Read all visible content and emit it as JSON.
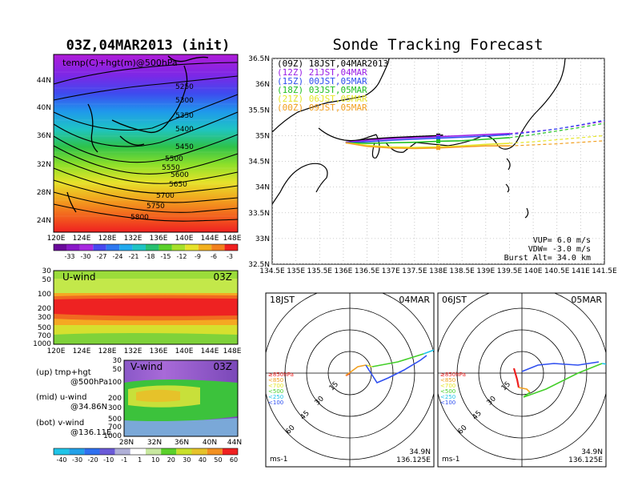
{
  "left_title": "03Z,04MAR2013 (init)",
  "right_title": "Sonde Tracking Forecast",
  "colors": {
    "purple": "#9a1ce6",
    "blue": "#2f4ff0",
    "cyan": "#1fc4e8",
    "teal": "#22c08a",
    "green": "#44cf2a",
    "lime": "#a6e830",
    "yellow": "#e4e62a",
    "orange": "#f2a020",
    "red": "#ef2020"
  },
  "top_map": {
    "inset_label": "temp(C)+hgt(m)@500hPa",
    "lat_ticks": [
      "44N",
      "40N",
      "36N",
      "32N",
      "28N",
      "24N"
    ],
    "lon_ticks": [
      "120E",
      "124E",
      "128E",
      "132E",
      "136E",
      "140E",
      "144E",
      "148E"
    ],
    "contour_labels": [
      "5250",
      "5300",
      "5350",
      "5400",
      "5450",
      "5500",
      "5550",
      "5600",
      "5650",
      "5700",
      "5750",
      "5800"
    ],
    "colorbar_labels": [
      "-33",
      "-30",
      "-27",
      "-24",
      "-21",
      "-18",
      "-15",
      "-12",
      "-9",
      "-6",
      "-3"
    ]
  },
  "u_panel": {
    "label": "U-wind",
    "time": "03Z",
    "p_ticks": [
      "30",
      "50",
      "100",
      "200",
      "300",
      "500",
      "700",
      "1000"
    ],
    "lon_ticks": [
      "120E",
      "124E",
      "128E",
      "132E",
      "136E",
      "140E",
      "144E",
      "148E"
    ]
  },
  "v_panel": {
    "label": "V-wind",
    "time": "03Z",
    "p_ticks": [
      "30",
      "50",
      "100",
      "200",
      "300",
      "500",
      "700",
      "1000"
    ],
    "lat_ticks": [
      "28N",
      "32N",
      "36N",
      "40N",
      "44N"
    ]
  },
  "legend_notes": [
    {
      "line1": "(up) tmp+hgt",
      "line2": "@500hPa"
    },
    {
      "line1": "(mid) u-wind",
      "line2": "@34.86N"
    },
    {
      "line1": "(bot) v-wind",
      "line2": "@136.11E"
    }
  ],
  "wind_colorbar_labels": [
    "-40",
    "-30",
    "-20",
    "-10",
    "-1",
    "1",
    "10",
    "20",
    "30",
    "40",
    "50",
    "60"
  ],
  "chart_data": {
    "type": "line",
    "title": "Sonde Tracking Forecast",
    "xlim": [
      134.5,
      141.5
    ],
    "ylim": [
      32.5,
      36.5
    ],
    "x_ticks": [
      "134.5E",
      "135E",
      "135.5E",
      "136E",
      "136.5E",
      "137E",
      "137.5E",
      "138E",
      "138.5E",
      "139E",
      "139.5E",
      "140E",
      "140.5E",
      "141E",
      "141.5E"
    ],
    "y_ticks": [
      "36.5N",
      "36N",
      "35.5N",
      "35N",
      "34.5N",
      "34N",
      "33.5N",
      "33N",
      "32.5N"
    ],
    "series": [
      {
        "name": "(09Z)  18JST,04MAR2013",
        "color": "#000000",
        "x": [
          136.05,
          136.5,
          137.0,
          137.5,
          138.0,
          138.1
        ],
        "y": [
          34.87,
          34.93,
          34.96,
          34.98,
          35.0,
          35.01
        ]
      },
      {
        "name": "(12Z)  21JST,04MAR",
        "color": "#9a1ce6",
        "x": [
          136.05,
          136.5,
          137.0,
          137.5,
          138.0,
          138.5,
          139.0,
          139.5,
          140.0,
          140.5,
          141.0,
          141.5
        ],
        "y": [
          34.87,
          34.91,
          34.94,
          34.96,
          34.98,
          35.0,
          35.02,
          35.04,
          35.08,
          35.13,
          35.2,
          35.28
        ]
      },
      {
        "name": "(15Z)  00JST,05MAR",
        "color": "#2f4ff0",
        "x": [
          136.05,
          136.5,
          137.0,
          137.5,
          138.0,
          138.5,
          139.0,
          139.5,
          140.0,
          140.5,
          141.0,
          141.5
        ],
        "y": [
          34.86,
          34.88,
          34.91,
          34.93,
          34.95,
          34.97,
          34.99,
          35.02,
          35.07,
          35.13,
          35.21,
          35.3
        ]
      },
      {
        "name": "(18Z)  03JST,05MAR",
        "color": "#22c022",
        "x": [
          136.05,
          136.5,
          137.0,
          137.5,
          138.0,
          138.5,
          139.0,
          139.5,
          140.0,
          140.5,
          141.0,
          141.5
        ],
        "y": [
          34.86,
          34.85,
          34.86,
          34.87,
          34.89,
          34.9,
          34.93,
          34.96,
          35.02,
          35.09,
          35.16,
          35.24
        ]
      },
      {
        "name": "(21Z)  06JST,05MAR",
        "color": "#e6e62a",
        "x": [
          136.05,
          136.5,
          137.0,
          137.5,
          138.0,
          138.5,
          139.0,
          139.5,
          140.0,
          140.5,
          141.0,
          141.5
        ],
        "y": [
          34.86,
          34.81,
          34.78,
          34.77,
          34.78,
          34.8,
          34.83,
          34.85,
          34.88,
          34.92,
          34.96,
          35.0
        ]
      },
      {
        "name": "(00Z)  09JST,05MAR",
        "color": "#f2a020",
        "x": [
          136.05,
          136.5,
          137.0,
          137.5,
          138.0,
          138.5,
          139.0,
          139.5,
          140.0,
          140.5,
          141.0,
          141.5
        ],
        "y": [
          34.86,
          34.79,
          34.76,
          34.75,
          34.76,
          34.78,
          34.8,
          34.8,
          34.82,
          34.84,
          34.87,
          34.9
        ]
      }
    ],
    "vup_text": "VUP=  6.0  m/s",
    "vdw_text": "VDW= -3.0  m/s",
    "burst_text": "Burst Alt= 34.0  km"
  },
  "hodographs": [
    {
      "time": "18JST",
      "date": "04MAR",
      "units": "ms-1",
      "lat": "34.9N",
      "lon": "136.125E",
      "ring_labels": [
        "15",
        "30",
        "45",
        "60"
      ],
      "legend": [
        {
          "text": "≥850hPa",
          "color": "#ef2020"
        },
        {
          "text": "<850",
          "color": "#f2a020"
        },
        {
          "text": "<700",
          "color": "#e4e62a"
        },
        {
          "text": "<500",
          "color": "#44cf2a"
        },
        {
          "text": "<250",
          "color": "#1fc4e8"
        },
        {
          "text": "<100",
          "color": "#2f4ff0"
        }
      ]
    },
    {
      "time": "06JST",
      "date": "05MAR",
      "units": "ms-1",
      "lat": "34.9N",
      "lon": "136.125E",
      "ring_labels": [
        "15",
        "30",
        "45",
        "60"
      ],
      "legend": [
        {
          "text": "≥850hPa",
          "color": "#ef2020"
        },
        {
          "text": "<850",
          "color": "#f2a020"
        },
        {
          "text": "<700",
          "color": "#e4e62a"
        },
        {
          "text": "<500",
          "color": "#44cf2a"
        },
        {
          "text": "<250",
          "color": "#1fc4e8"
        },
        {
          "text": "<100",
          "color": "#2f4ff0"
        }
      ]
    }
  ]
}
